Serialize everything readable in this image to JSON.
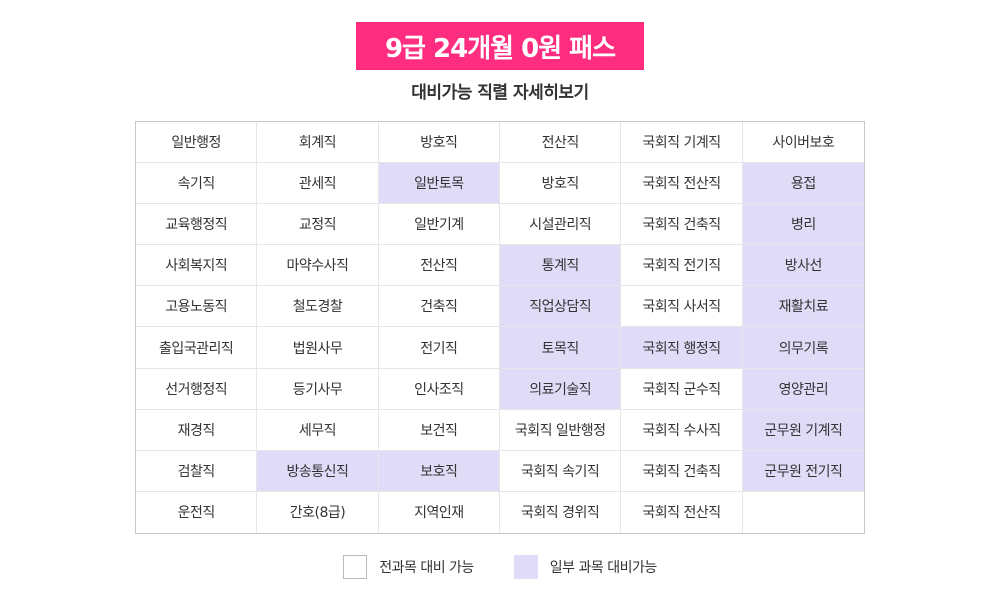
{
  "badge": {
    "text": "9급 24개월 0원 패스"
  },
  "subtitle": "대비가능 직렬 자세히보기",
  "colors": {
    "badge_bg": "#ff2d7f",
    "partial_bg": "#e0dcf8",
    "border": "#c8c8c8"
  },
  "grid": {
    "rows": [
      [
        {
          "label": "일반행정",
          "partial": false
        },
        {
          "label": "회계직",
          "partial": false
        },
        {
          "label": "방호직",
          "partial": false
        },
        {
          "label": "전산직",
          "partial": false
        },
        {
          "label": "국회직 기계직",
          "partial": false
        },
        {
          "label": "사이버보호",
          "partial": false
        }
      ],
      [
        {
          "label": "속기직",
          "partial": false
        },
        {
          "label": "관세직",
          "partial": false
        },
        {
          "label": "일반토목",
          "partial": true
        },
        {
          "label": "방호직",
          "partial": false
        },
        {
          "label": "국회직 전산직",
          "partial": false
        },
        {
          "label": "용접",
          "partial": true
        }
      ],
      [
        {
          "label": "교육행정직",
          "partial": false
        },
        {
          "label": "교정직",
          "partial": false
        },
        {
          "label": "일반기계",
          "partial": false
        },
        {
          "label": "시설관리직",
          "partial": false
        },
        {
          "label": "국회직 건축직",
          "partial": false
        },
        {
          "label": "병리",
          "partial": true
        }
      ],
      [
        {
          "label": "사회복지직",
          "partial": false
        },
        {
          "label": "마약수사직",
          "partial": false
        },
        {
          "label": "전산직",
          "partial": false
        },
        {
          "label": "통계직",
          "partial": true
        },
        {
          "label": "국회직 전기직",
          "partial": false
        },
        {
          "label": "방사선",
          "partial": true
        }
      ],
      [
        {
          "label": "고용노동직",
          "partial": false
        },
        {
          "label": "철도경찰",
          "partial": false
        },
        {
          "label": "건축직",
          "partial": false
        },
        {
          "label": "직업상담직",
          "partial": true
        },
        {
          "label": "국회직 사서직",
          "partial": false
        },
        {
          "label": "재활치료",
          "partial": true
        }
      ],
      [
        {
          "label": "출입국관리직",
          "partial": false
        },
        {
          "label": "법원사무",
          "partial": false
        },
        {
          "label": "전기직",
          "partial": false
        },
        {
          "label": "토목직",
          "partial": true
        },
        {
          "label": "국회직 행정직",
          "partial": true
        },
        {
          "label": "의무기록",
          "partial": true
        }
      ],
      [
        {
          "label": "선거행정직",
          "partial": false
        },
        {
          "label": "등기사무",
          "partial": false
        },
        {
          "label": "인사조직",
          "partial": false
        },
        {
          "label": "의료기술직",
          "partial": true
        },
        {
          "label": "국회직 군수직",
          "partial": false
        },
        {
          "label": "영양관리",
          "partial": true
        }
      ],
      [
        {
          "label": "재경직",
          "partial": false
        },
        {
          "label": "세무직",
          "partial": false
        },
        {
          "label": "보건직",
          "partial": false
        },
        {
          "label": "국회직 일반행정",
          "partial": false
        },
        {
          "label": "국회직 수사직",
          "partial": false
        },
        {
          "label": "군무원 기계직",
          "partial": true
        }
      ],
      [
        {
          "label": "검찰직",
          "partial": false
        },
        {
          "label": "방송통신직",
          "partial": true
        },
        {
          "label": "보호직",
          "partial": true
        },
        {
          "label": "국회직 속기직",
          "partial": false
        },
        {
          "label": "국회직 건축직",
          "partial": false
        },
        {
          "label": "군무원 전기직",
          "partial": true
        }
      ],
      [
        {
          "label": "운전직",
          "partial": false
        },
        {
          "label": "간호(8급)",
          "partial": false
        },
        {
          "label": "지역인재",
          "partial": false
        },
        {
          "label": "국회직 경위직",
          "partial": false
        },
        {
          "label": "국회직 전산직",
          "partial": false
        },
        {
          "label": "",
          "partial": false
        }
      ]
    ]
  },
  "legend": {
    "full_label": "전과목 대비 가능",
    "partial_label": "일부 과목 대비가능"
  }
}
